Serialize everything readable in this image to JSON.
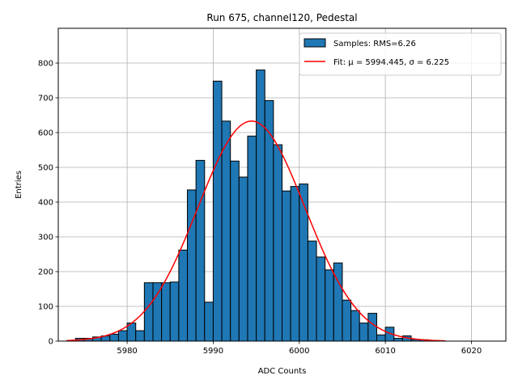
{
  "chart_data": {
    "type": "bar",
    "title": "Run 675, channel120, Pedestal",
    "xlabel": "ADC Counts",
    "ylabel": "Entries",
    "xlim": [
      5972,
      6024
    ],
    "ylim": [
      0,
      900
    ],
    "xticks": [
      5980,
      5990,
      6000,
      6010,
      6020
    ],
    "yticks": [
      0,
      100,
      200,
      300,
      400,
      500,
      600,
      700,
      800
    ],
    "grid": true,
    "legend_position": "top-right",
    "bar_color": "#1f77b4",
    "fit_color": "#ff0000",
    "bins": {
      "start": 5973,
      "width": 1,
      "values": [
        2,
        8,
        8,
        12,
        15,
        20,
        30,
        52,
        30,
        168,
        168,
        168,
        170,
        262,
        435,
        520,
        112,
        748,
        633,
        518,
        472,
        590,
        780,
        692,
        565,
        432,
        445,
        452,
        288,
        242,
        205,
        225,
        118,
        88,
        52,
        80,
        18,
        40,
        8,
        15,
        5,
        4,
        2
      ]
    },
    "fit": {
      "mu": 5994.445,
      "sigma": 6.225,
      "amplitude": 633,
      "x_range": [
        5973,
        6017
      ]
    },
    "legend": [
      {
        "label": "Samples: RMS=6.26",
        "kind": "bar"
      },
      {
        "label": "Fit: μ = 5994.445, σ = 6.225",
        "kind": "line"
      }
    ]
  }
}
